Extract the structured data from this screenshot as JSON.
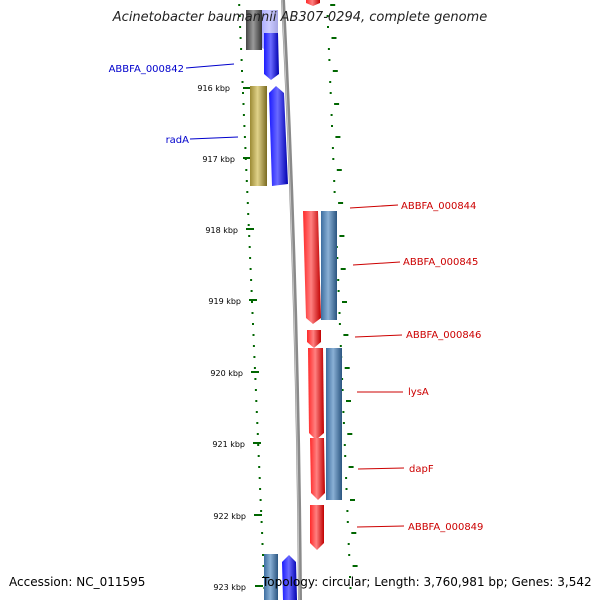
{
  "title": "Acinetobacter baumannii AB307-0294, complete genome",
  "footer": {
    "accession": "Accession: NC_011595",
    "topology": "Topology: circular; Length: 3,760,981 bp; Genes: 3,542"
  },
  "colors": {
    "forward_label": "#0000cc",
    "reverse_label": "#cc0000",
    "cds_forward": "#0000ee",
    "cds_reverse": "#ff0000",
    "gene_blue": "#4a7fb5",
    "gene_olive": "#b5a24a",
    "gene_gray": "#666666",
    "backbone": "#888888",
    "gc_dots": "#006600"
  },
  "axis": {
    "ticks": [
      {
        "kbp": 916,
        "label": "916 kbp"
      },
      {
        "kbp": 917,
        "label": "917 kbp"
      },
      {
        "kbp": 918,
        "label": "918 kbp"
      },
      {
        "kbp": 919,
        "label": "919 kbp"
      },
      {
        "kbp": 920,
        "label": "920 kbp"
      },
      {
        "kbp": 921,
        "label": "921 kbp"
      },
      {
        "kbp": 922,
        "label": "922 kbp"
      },
      {
        "kbp": 923,
        "label": "923 kbp"
      }
    ]
  },
  "labels": [
    {
      "text": "ABBFA_000842",
      "strand": "forward"
    },
    {
      "text": "radA",
      "strand": "forward"
    },
    {
      "text": "ABBFA_000844",
      "strand": "reverse"
    },
    {
      "text": "ABBFA_000845",
      "strand": "reverse"
    },
    {
      "text": "ABBFA_000846",
      "strand": "reverse"
    },
    {
      "text": "lysA",
      "strand": "reverse"
    },
    {
      "text": "dapF",
      "strand": "reverse"
    },
    {
      "text": "ABBFA_000849",
      "strand": "reverse"
    }
  ]
}
